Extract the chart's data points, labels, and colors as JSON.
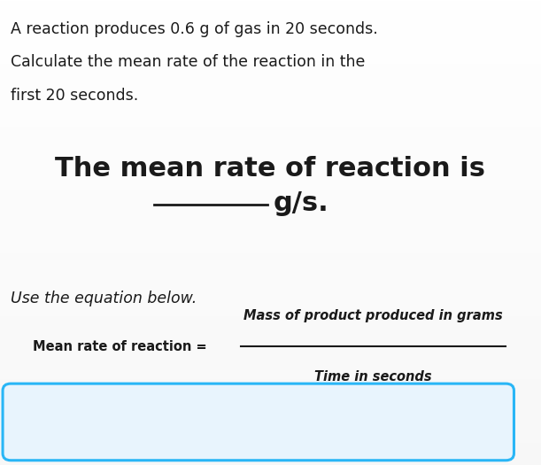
{
  "bg_top_color": "#ffffff",
  "bg_bottom_color": "#d8d8d8",
  "box_fill_color": "#e8f4fd",
  "intro_text_line1": "A reaction produces 0.6 g of gas in 20 seconds.",
  "intro_text_line2": "Calculate the mean rate of the reaction in the",
  "intro_text_line3": "first 20 seconds.",
  "big_text_line1": "The mean rate of reaction is",
  "big_text_line2": "g/s.",
  "italic_text": "Use the equation below.",
  "label_left": "Mean rate of reaction =",
  "numerator": "Mass of product produced in grams",
  "denominator": "Time in seconds",
  "box_border_color": "#29b6f6",
  "text_color": "#1a1a1a",
  "intro_fontsize": 12.5,
  "big_fontsize": 22,
  "italic_fontsize": 12.5,
  "equation_fontsize": 10.5
}
